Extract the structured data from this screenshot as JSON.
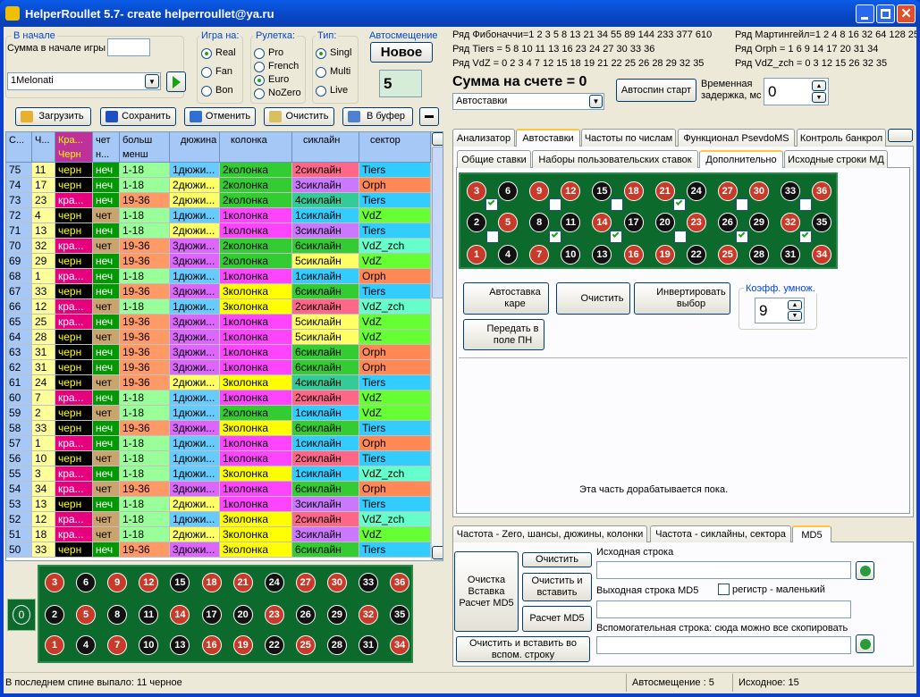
{
  "window": {
    "title": "HelperRoullet 5.7- create helperroullet@ya.ru"
  },
  "start": {
    "group": "В начале",
    "sum_label": "Сумма в начале игры",
    "system": "1Melonati"
  },
  "game": {
    "label": "Игра на:",
    "options": [
      "Real",
      "Fan",
      "Bon"
    ],
    "selected": 0
  },
  "roulette": {
    "label": "Рулетка:",
    "options": [
      "Pro",
      "French",
      "Euro",
      "NoZero"
    ],
    "selected": 2
  },
  "kind": {
    "label": "Тип:",
    "options": [
      "Singl",
      "Multi",
      "Live"
    ],
    "selected": 0
  },
  "autoshift": {
    "label": "Автосмещение",
    "button": "Новое",
    "value": 5
  },
  "toolbar": [
    "Загрузить",
    "Сохранить",
    "Отменить",
    "Очистить",
    "В буфер"
  ],
  "table": {
    "columns": [
      [
        "С..."
      ],
      [
        "Ч..."
      ],
      [
        "Кра...",
        "Черн"
      ],
      [
        "чет",
        "н..."
      ],
      [
        "больш",
        "менш"
      ],
      [
        "дюжина"
      ],
      [
        "колонка"
      ],
      [
        "сиклайн"
      ],
      [
        "сектор"
      ]
    ],
    "rows": [
      [
        75,
        11,
        "черн",
        "неч",
        "1-18",
        "1дюжи...",
        "2колонка",
        "2сиклайн",
        "Tiers"
      ],
      [
        74,
        17,
        "черн",
        "неч",
        "1-18",
        "2дюжи...",
        "2колонка",
        "3сиклайн",
        "Orph"
      ],
      [
        73,
        23,
        "кра...",
        "неч",
        "19-36",
        "2дюжи...",
        "2колонка",
        "4сиклайн",
        "Tiers"
      ],
      [
        72,
        4,
        "черн",
        "чет",
        "1-18",
        "1дюжи...",
        "1колонка",
        "1сиклайн",
        "VdZ"
      ],
      [
        71,
        13,
        "черн",
        "неч",
        "1-18",
        "2дюжи...",
        "1колонка",
        "3сиклайн",
        "Tiers"
      ],
      [
        70,
        32,
        "кра...",
        "чет",
        "19-36",
        "3дюжи...",
        "2колонка",
        "6сиклайн",
        "VdZ_zch"
      ],
      [
        69,
        29,
        "черн",
        "неч",
        "19-36",
        "3дюжи...",
        "2колонка",
        "5сиклайн",
        "VdZ"
      ],
      [
        68,
        1,
        "кра...",
        "неч",
        "1-18",
        "1дюжи...",
        "1колонка",
        "1сиклайн",
        "Orph"
      ],
      [
        67,
        33,
        "черн",
        "неч",
        "19-36",
        "3дюжи...",
        "3колонка",
        "6сиклайн",
        "Tiers"
      ],
      [
        66,
        12,
        "кра...",
        "чет",
        "1-18",
        "1дюжи...",
        "3колонка",
        "2сиклайн",
        "VdZ_zch"
      ],
      [
        65,
        25,
        "кра...",
        "неч",
        "19-36",
        "3дюжи...",
        "1колонка",
        "5сиклайн",
        "VdZ"
      ],
      [
        64,
        28,
        "черн",
        "чет",
        "19-36",
        "3дюжи...",
        "1колонка",
        "5сиклайн",
        "VdZ"
      ],
      [
        63,
        31,
        "черн",
        "неч",
        "19-36",
        "3дюжи...",
        "1колонка",
        "6сиклайн",
        "Orph"
      ],
      [
        62,
        31,
        "черн",
        "неч",
        "19-36",
        "3дюжи...",
        "1колонка",
        "6сиклайн",
        "Orph"
      ],
      [
        61,
        24,
        "черн",
        "чет",
        "19-36",
        "2дюжи...",
        "3колонка",
        "4сиклайн",
        "Tiers"
      ],
      [
        60,
        7,
        "кра...",
        "неч",
        "1-18",
        "1дюжи...",
        "1колонка",
        "2сиклайн",
        "VdZ"
      ],
      [
        59,
        2,
        "черн",
        "чет",
        "1-18",
        "1дюжи...",
        "2колонка",
        "1сиклайн",
        "VdZ"
      ],
      [
        58,
        33,
        "черн",
        "неч",
        "19-36",
        "3дюжи...",
        "3колонка",
        "6сиклайн",
        "Tiers"
      ],
      [
        57,
        1,
        "кра...",
        "неч",
        "1-18",
        "1дюжи...",
        "1колонка",
        "1сиклайн",
        "Orph"
      ],
      [
        56,
        10,
        "черн",
        "чет",
        "1-18",
        "1дюжи...",
        "1колонка",
        "2сиклайн",
        "Tiers"
      ],
      [
        55,
        3,
        "кра...",
        "неч",
        "1-18",
        "1дюжи...",
        "3колонка",
        "1сиклайн",
        "VdZ_zch"
      ],
      [
        54,
        34,
        "кра...",
        "чет",
        "19-36",
        "3дюжи...",
        "1колонка",
        "6сиклайн",
        "Orph"
      ],
      [
        53,
        13,
        "черн",
        "неч",
        "1-18",
        "2дюжи...",
        "1колонка",
        "3сиклайн",
        "Tiers"
      ],
      [
        52,
        12,
        "кра...",
        "чет",
        "1-18",
        "1дюжи...",
        "3колонка",
        "2сиклайн",
        "VdZ_zch"
      ],
      [
        51,
        18,
        "кра...",
        "чет",
        "1-18",
        "2дюжи...",
        "3колонка",
        "3сиклайн",
        "VdZ"
      ],
      [
        50,
        33,
        "черн",
        "неч",
        "19-36",
        "3дюжи...",
        "3колонка",
        "6сиклайн",
        "Tiers"
      ]
    ],
    "cell_colors": {
      "2": {
        "черн": [
          "#000000",
          "#ffff00"
        ],
        "кра...": [
          "#e6007e",
          "#ffffff"
        ]
      },
      "3": {
        "неч": [
          "#009a00",
          "#ffffff"
        ],
        "чет": [
          "#c9a46c",
          "#000000"
        ]
      },
      "4": {
        "1-18": [
          "#99ff99",
          "#000000"
        ],
        "19-36": [
          "#ff9966",
          "#000000"
        ]
      },
      "5": {
        "1дюжи...": [
          "#66ccff",
          "#000000"
        ],
        "2дюжи...": [
          "#ffff66",
          "#000000"
        ],
        "3дюжи...": [
          "#dd66ff",
          "#000000"
        ]
      },
      "6": {
        "1колонка": [
          "#ff44ff",
          "#000000"
        ],
        "2колонка": [
          "#33cc33",
          "#000000"
        ],
        "3колонка": [
          "#ffff00",
          "#000000"
        ]
      },
      "7": {
        "1сиклайн": [
          "#33ccff",
          "#000000"
        ],
        "2сиклайн": [
          "#ff6688",
          "#000000"
        ],
        "3сиклайн": [
          "#cc77ff",
          "#000000"
        ],
        "4сиклайн": [
          "#33cc99",
          "#000000"
        ],
        "5сиклайн": [
          "#ffff66",
          "#000000"
        ],
        "6сиклайн": [
          "#33cc33",
          "#000000"
        ]
      },
      "8": {
        "Tiers": [
          "#33ccff",
          "#000000"
        ],
        "Orph": [
          "#ff8855",
          "#000000"
        ],
        "VdZ": [
          "#66ff33",
          "#000000"
        ],
        "VdZ_zch": [
          "#66ffcc",
          "#000000"
        ]
      }
    }
  },
  "board": {
    "zero": "0",
    "rows": [
      [
        3,
        6,
        9,
        12,
        15,
        18,
        21,
        24,
        27,
        30,
        33,
        36
      ],
      [
        2,
        5,
        8,
        11,
        14,
        17,
        20,
        23,
        26,
        29,
        32,
        35
      ],
      [
        1,
        4,
        7,
        10,
        13,
        16,
        19,
        22,
        25,
        28,
        31,
        34
      ]
    ],
    "colors": [
      "rbrrbrrbrrbr",
      "brbbrbbrbbrb",
      "rbrbbrrbrbbr"
    ]
  },
  "series_info": [
    "Ряд Фибоначчи=1 2 3 5 8 13 21 34 55 89 144 233 377 610",
    "Ряд Tiers = 5 8 10 11 13 16 23 24 27 30 33 36",
    "Ряд VdZ = 0 2 3 4 7 12 15 18 19 21 22 25 26 28 29 32 35",
    "Ряд Мартингейл=1 2 4 8 16 32 64 128 25",
    "Ряд Orph = 1 6 9 14 17 20 31 34",
    "Ряд VdZ_zch = 0 3 12 15 26 32 35"
  ],
  "account": {
    "text": "Сумма на счете = 0",
    "mode": "Автоставки",
    "autospin": "Автоспин старт",
    "delay_label": "Временная задержка, мс",
    "delay": 0
  },
  "tabs": [
    "Анализатор",
    "Автоставки",
    "Частоты по числам",
    "Функционал PsevdoMS",
    "Контроль банкрол"
  ],
  "active_tab": 1,
  "subtabs": [
    "Общие ставки",
    "Наборы пользовательских ставок",
    "Дополнительно",
    "Исходные строки МД"
  ],
  "active_subtab": 2,
  "extra": {
    "corner": "Автоставка каре",
    "clear": "Очистить",
    "invert": "Инвертировать выбор",
    "transfer": "Передать в поле ПН",
    "coef_label": "Коэфф. умнож.",
    "coef": 9,
    "note": "Эта часть дорабатывается пока."
  },
  "bottom_tabs": [
    "Частота - Zero, шансы, дюжины, колонки",
    "Частота - сиклайны, сектора",
    "MD5"
  ],
  "active_bottom_tab": 2,
  "md5": {
    "big_button": "Очистка Вставка Расчет MD5",
    "clear": "Очистить",
    "clear_paste": "Очистить и вставить",
    "calc": "Расчет MD5",
    "clear_paste_aux": "Очистить и вставить во вспом. строку",
    "source_label": "Исходная строка",
    "output_label": "Выходная строка MD5",
    "case_label": "регистр  - маленький",
    "aux_label": "Вспомогательная строка: сюда можно все скопировать"
  },
  "status": [
    "В последнем спине выпало: 11 черное",
    "Автосмещение : 5",
    "Исходное: 15"
  ]
}
